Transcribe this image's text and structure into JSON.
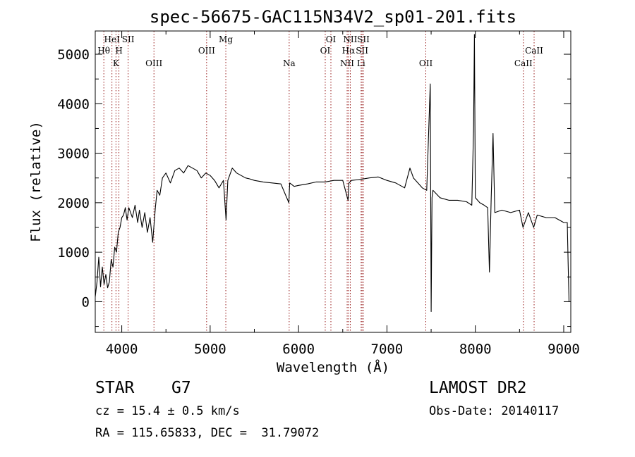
{
  "chart_data": {
    "type": "line",
    "title": "spec-56675-GAC115N34V2_sp01-201.fits",
    "xlabel": "Wavelength (Å)",
    "ylabel": "Flux (relative)",
    "xlim": [
      3700,
      9080
    ],
    "ylim": [
      -620,
      5470
    ],
    "xticks": [
      4000,
      5000,
      6000,
      7000,
      8000,
      9000
    ],
    "yticks": [
      0,
      1000,
      2000,
      3000,
      4000,
      5000
    ],
    "grid": false,
    "series": [
      {
        "x": [
          3700,
          3720,
          3740,
          3760,
          3780,
          3800,
          3820,
          3840,
          3860,
          3880,
          3900,
          3920,
          3940,
          3960,
          3980,
          4000,
          4020,
          4040,
          4060,
          4080,
          4100,
          4120,
          4150,
          4180,
          4200,
          4230,
          4260,
          4290,
          4320,
          4350,
          4380,
          4400,
          4430,
          4460,
          4500,
          4550,
          4600,
          4650,
          4700,
          4750,
          4800,
          4850,
          4900,
          4950,
          5000,
          5050,
          5100,
          5150,
          5180,
          5200,
          5250,
          5300,
          5350,
          5400,
          5450,
          5500,
          5600,
          5700,
          5800,
          5890,
          5900,
          5950,
          6000,
          6100,
          6200,
          6300,
          6400,
          6500,
          6560,
          6570,
          6600,
          6700,
          6800,
          6900,
          7000,
          7100,
          7200,
          7260,
          7300,
          7400,
          7450,
          7490,
          7500,
          7510,
          7520,
          7600,
          7700,
          7800,
          7900,
          7960,
          7980,
          7990,
          8000,
          8050,
          8100,
          8140,
          8160,
          8180,
          8200,
          8220,
          8300,
          8400,
          8500,
          8540,
          8600,
          8660,
          8700,
          8800,
          8900,
          9000,
          9040,
          9050,
          9060
        ],
        "y": [
          100,
          400,
          900,
          300,
          700,
          350,
          550,
          280,
          400,
          850,
          700,
          1100,
          1000,
          1400,
          1500,
          1700,
          1750,
          1900,
          1650,
          1900,
          1800,
          1700,
          1950,
          1600,
          1850,
          1500,
          1800,
          1400,
          1700,
          1200,
          1900,
          2250,
          2150,
          2500,
          2600,
          2400,
          2650,
          2700,
          2600,
          2750,
          2700,
          2650,
          2500,
          2600,
          2550,
          2450,
          2300,
          2450,
          1650,
          2450,
          2700,
          2600,
          2550,
          2500,
          2480,
          2450,
          2420,
          2400,
          2380,
          2000,
          2400,
          2330,
          2350,
          2380,
          2420,
          2420,
          2450,
          2450,
          2050,
          2400,
          2450,
          2470,
          2500,
          2520,
          2450,
          2400,
          2300,
          2700,
          2500,
          2300,
          2250,
          4400,
          -200,
          2100,
          2250,
          2100,
          2050,
          2050,
          2020,
          1950,
          3500,
          5400,
          2100,
          2000,
          1950,
          1900,
          600,
          2100,
          3400,
          1800,
          1850,
          1800,
          1850,
          1500,
          1800,
          1500,
          1750,
          1700,
          1700,
          1600,
          1600,
          800,
          0
        ]
      }
    ],
    "lines": [
      {
        "label": "Hθ",
        "x": 3797,
        "row": 2
      },
      {
        "label": "HeI",
        "x": 3889,
        "row": 1
      },
      {
        "label": "K",
        "x": 3934,
        "row": 3
      },
      {
        "label": "H",
        "x": 3968,
        "row": 2
      },
      {
        "label": "SII",
        "x": 4072,
        "row": 1
      },
      {
        "label": "OIII",
        "x": 4364,
        "row": 3
      },
      {
        "label": "OIII",
        "x": 4960,
        "row": 2
      },
      {
        "label": "Mg",
        "x": 5177,
        "row": 1
      },
      {
        "label": "Na",
        "x": 5894,
        "row": 3
      },
      {
        "label": "OI",
        "x": 6302,
        "row": 2
      },
      {
        "label": "OI",
        "x": 6366,
        "row": 1
      },
      {
        "label": "NII",
        "x": 6550,
        "row": 3
      },
      {
        "label": "Hα",
        "x": 6565,
        "row": 2
      },
      {
        "label": "NII",
        "x": 6585,
        "row": 1
      },
      {
        "label": "Li",
        "x": 6708,
        "row": 3
      },
      {
        "label": "SII",
        "x": 6718,
        "row": 2
      },
      {
        "label": "SII",
        "x": 6733,
        "row": 1
      },
      {
        "label": "OII",
        "x": 7440,
        "row": 3
      },
      {
        "label": "CaII",
        "x": 8544,
        "row": 3
      },
      {
        "label": "CaII",
        "x": 8665,
        "row": 2
      }
    ]
  },
  "info": {
    "class_label": "STAR",
    "subclass": "G7",
    "survey": "LAMOST DR2",
    "cz_text": "cz = 15.4 ± 0.5 km/s",
    "obs_date": "Obs-Date: 20140117",
    "radec": "RA = 115.65833, DEC =  31.79072"
  },
  "colors": {
    "spectrum": "#000000",
    "line_markers": "#8b0000",
    "axes": "#000000",
    "background": "#ffffff"
  }
}
